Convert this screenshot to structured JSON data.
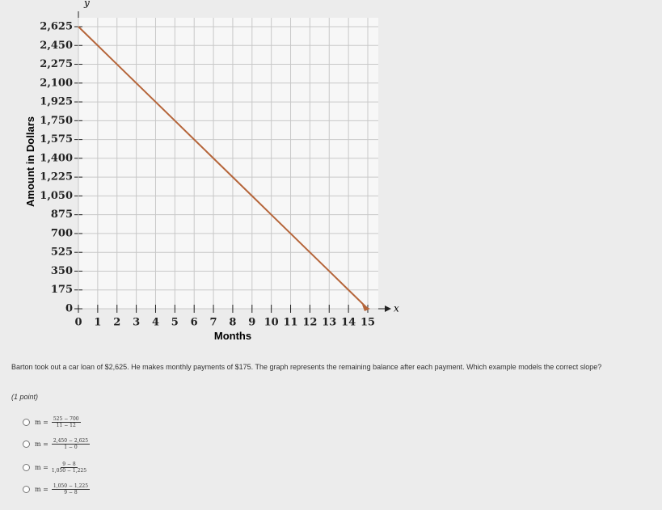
{
  "chart_data": {
    "type": "line",
    "x_label": "Months",
    "y_label": "Amount in Dollars",
    "x_axis_letter": "x",
    "y_axis_letter": "y",
    "x": [
      0,
      1,
      2,
      3,
      4,
      5,
      6,
      7,
      8,
      9,
      10,
      11,
      12,
      13,
      14,
      15
    ],
    "series": [
      {
        "color": "#b5653a",
        "values": [
          2625,
          2450,
          2275,
          2100,
          1925,
          1750,
          1575,
          1400,
          1225,
          1050,
          875,
          700,
          525,
          350,
          175,
          0
        ]
      }
    ],
    "xlim": [
      0,
      15
    ],
    "ylim": [
      0,
      2625
    ],
    "xticks": [
      0,
      1,
      2,
      3,
      4,
      5,
      6,
      7,
      8,
      9,
      10,
      11,
      12,
      13,
      14,
      15
    ],
    "yticks": [
      0,
      175,
      350,
      525,
      700,
      875,
      {
        "value": 1050,
        "label": "1,050"
      },
      {
        "value": 1225,
        "label": "1,225"
      },
      {
        "value": 1400,
        "label": "1,400"
      },
      {
        "value": 1575,
        "label": "1,575"
      },
      {
        "value": 1750,
        "label": "1,750"
      },
      {
        "value": 1925,
        "label": "1,925"
      },
      {
        "value": 2100,
        "label": "2,100"
      },
      {
        "value": 2275,
        "label": "2,275"
      },
      {
        "value": 2450,
        "label": "2,450"
      },
      {
        "value": 2625,
        "label": "2,625"
      }
    ],
    "grid": true
  },
  "question": "Barton took out a car loan of $2,625. He makes monthly payments of $175. The graph represents the remaining balance after each payment. Which example models the correct slope?",
  "points": "(1 point)",
  "options": [
    {
      "lhs": "m =",
      "numerator": "525 − 700",
      "denominator": "11 − 12"
    },
    {
      "lhs": "m =",
      "numerator": "2,450 − 2,625",
      "denominator": "1 − 0"
    },
    {
      "lhs": "m =",
      "numerator": "9 − 8",
      "denominator": "1,050 − 1,225"
    },
    {
      "lhs": "m =",
      "numerator": "1,050 − 1,225",
      "denominator": "9 − 8"
    }
  ]
}
